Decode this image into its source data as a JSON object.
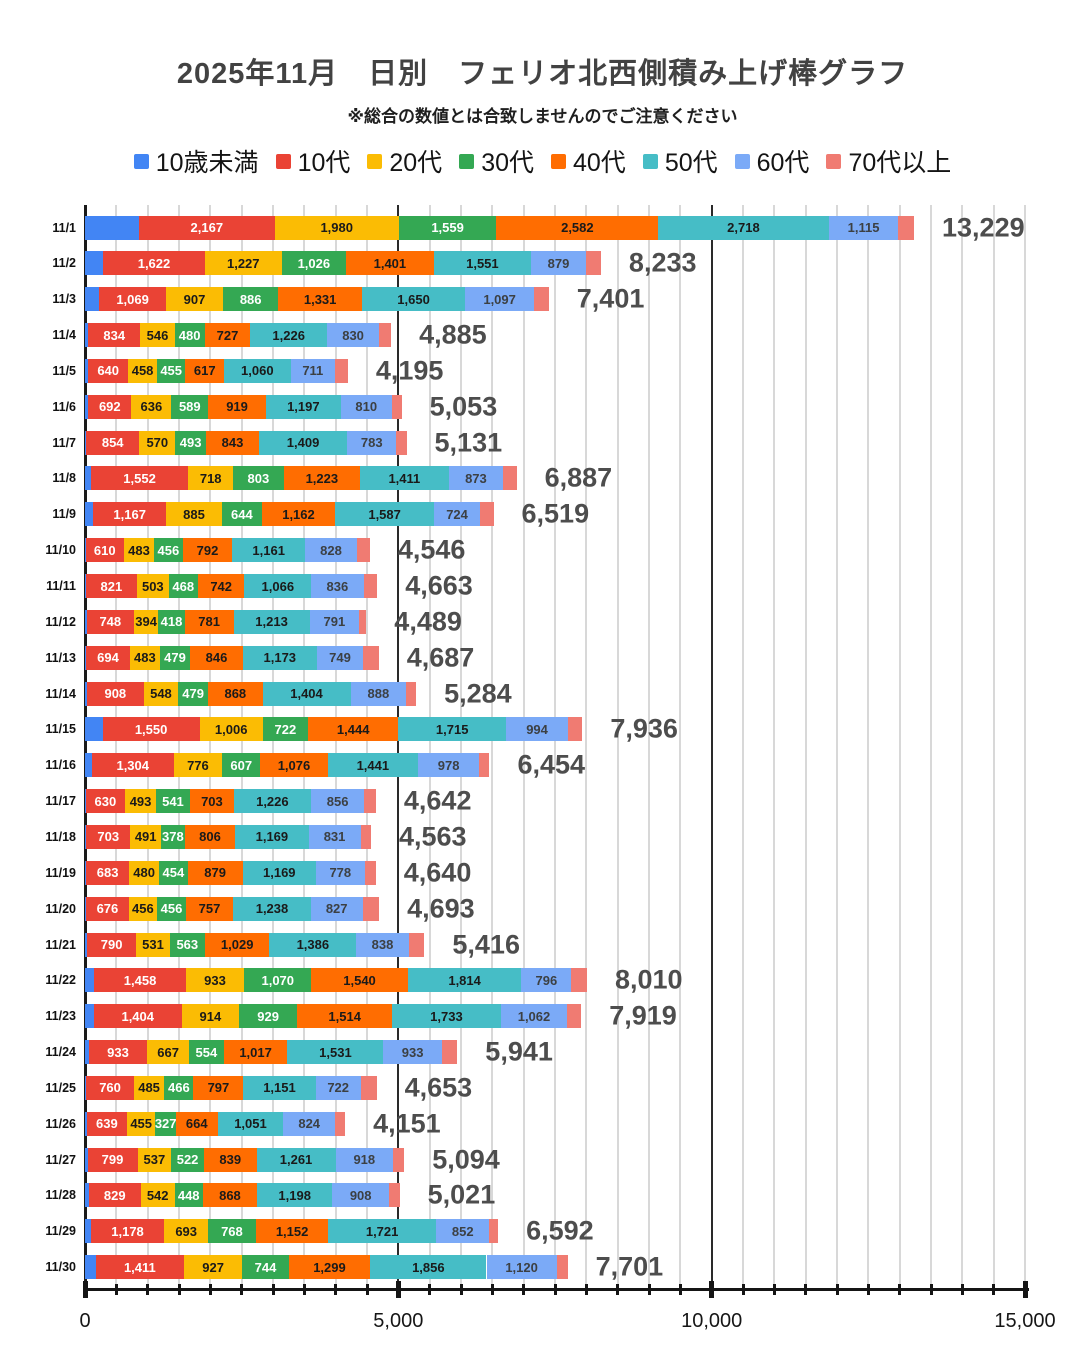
{
  "title": "2025年11月　日別　フェリオ北西側積み上げ棒グラフ",
  "subtitle": "※総合の数値とは合致しませんのでご注意ください",
  "legend": [
    {
      "label": "10歳未満",
      "color": "#4285F4"
    },
    {
      "label": "10代",
      "color": "#EA4335"
    },
    {
      "label": "20代",
      "color": "#FBBC04"
    },
    {
      "label": "30代",
      "color": "#34A853"
    },
    {
      "label": "40代",
      "color": "#FF6D01"
    },
    {
      "label": "50代",
      "color": "#46BDC6"
    },
    {
      "label": "60代",
      "color": "#7BAAF7"
    },
    {
      "label": "70代以上",
      "color": "#F07B72"
    }
  ],
  "chart_data": {
    "type": "bar",
    "orientation": "horizontal",
    "stacked": true,
    "title": "2025年11月　日別　フェリオ北西側積み上げ棒グラフ",
    "categories": [
      "11/1",
      "11/2",
      "11/3",
      "11/4",
      "11/5",
      "11/6",
      "11/7",
      "11/8",
      "11/9",
      "11/10",
      "11/11",
      "11/12",
      "11/13",
      "11/14",
      "11/15",
      "11/16",
      "11/17",
      "11/18",
      "11/19",
      "11/20",
      "11/21",
      "11/22",
      "11/23",
      "11/24",
      "11/25",
      "11/26",
      "11/27",
      "11/28",
      "11/29",
      "11/30"
    ],
    "series": [
      {
        "name": "10歳未満",
        "color": "#4285F4",
        "show_labels": false,
        "label_text_color": "#ffffff",
        "values": [
          860,
          290,
          225,
          50,
          50,
          50,
          15,
          95,
          130,
          10,
          10,
          30,
          20,
          30,
          280,
          110,
          10,
          20,
          20,
          20,
          30,
          150,
          140,
          60,
          20,
          30,
          40,
          60,
          90,
          170
        ]
      },
      {
        "name": "10代",
        "color": "#EA4335",
        "show_labels": true,
        "label_text_color": "#ffffff",
        "values": [
          2167,
          1622,
          1069,
          834,
          640,
          692,
          854,
          1552,
          1167,
          610,
          821,
          748,
          694,
          908,
          1550,
          1304,
          630,
          703,
          683,
          676,
          790,
          1458,
          1404,
          933,
          760,
          639,
          799,
          829,
          1178,
          1411
        ]
      },
      {
        "name": "20代",
        "color": "#FBBC04",
        "show_labels": true,
        "label_text_color": "#1a1a1a",
        "values": [
          1980,
          1227,
          907,
          546,
          458,
          636,
          570,
          718,
          885,
          483,
          503,
          394,
          483,
          548,
          1006,
          776,
          493,
          491,
          480,
          456,
          531,
          933,
          914,
          667,
          485,
          455,
          537,
          542,
          693,
          927
        ]
      },
      {
        "name": "30代",
        "color": "#34A853",
        "show_labels": true,
        "label_text_color": "#ffffff",
        "values": [
          1559,
          1026,
          886,
          480,
          455,
          589,
          493,
          803,
          644,
          456,
          468,
          418,
          479,
          479,
          722,
          607,
          541,
          378,
          454,
          456,
          563,
          1070,
          929,
          554,
          466,
          327,
          522,
          448,
          768,
          744
        ]
      },
      {
        "name": "40代",
        "color": "#FF6D01",
        "show_labels": true,
        "label_text_color": "#1a1a1a",
        "values": [
          2582,
          1401,
          1331,
          727,
          617,
          919,
          843,
          1223,
          1162,
          792,
          742,
          781,
          846,
          868,
          1444,
          1076,
          703,
          806,
          879,
          757,
          1029,
          1540,
          1514,
          1017,
          797,
          664,
          839,
          868,
          1152,
          1299
        ]
      },
      {
        "name": "50代",
        "color": "#46BDC6",
        "show_labels": true,
        "label_text_color": "#1a1a1a",
        "values": [
          2718,
          1551,
          1650,
          1226,
          1060,
          1197,
          1409,
          1411,
          1587,
          1161,
          1066,
          1213,
          1173,
          1404,
          1715,
          1441,
          1226,
          1169,
          1169,
          1238,
          1386,
          1814,
          1733,
          1531,
          1151,
          1051,
          1261,
          1198,
          1721,
          1856
        ]
      },
      {
        "name": "60代",
        "color": "#7BAAF7",
        "show_labels": true,
        "label_text_color": "#3c4043",
        "values": [
          1115,
          879,
          1097,
          830,
          711,
          810,
          783,
          873,
          724,
          828,
          836,
          791,
          749,
          888,
          994,
          978,
          856,
          831,
          778,
          827,
          838,
          796,
          1062,
          933,
          722,
          824,
          918,
          908,
          852,
          1120
        ]
      },
      {
        "name": "70代以上",
        "color": "#F07B72",
        "show_labels": false,
        "label_text_color": "#ffffff",
        "values": [
          248,
          237,
          236,
          192,
          204,
          160,
          164,
          212,
          220,
          206,
          217,
          114,
          243,
          159,
          225,
          162,
          183,
          165,
          177,
          263,
          249,
          249,
          223,
          246,
          252,
          161,
          178,
          168,
          138,
          174
        ]
      }
    ],
    "totals": [
      13229,
      8233,
      7401,
      4885,
      4195,
      5053,
      5131,
      6887,
      6519,
      4546,
      4663,
      4489,
      4687,
      5284,
      7936,
      6454,
      4642,
      4563,
      4640,
      4693,
      5416,
      8010,
      7919,
      5941,
      4653,
      4151,
      5094,
      5021,
      6592,
      7701
    ],
    "xlim": [
      0,
      15000
    ],
    "x_major_ticks": [
      0,
      5000,
      10000,
      15000
    ],
    "x_major_tick_labels": [
      "0",
      "5,000",
      "10,000",
      "15,000"
    ],
    "x_minor_step": 500,
    "grid": true,
    "legend_position": "top"
  }
}
